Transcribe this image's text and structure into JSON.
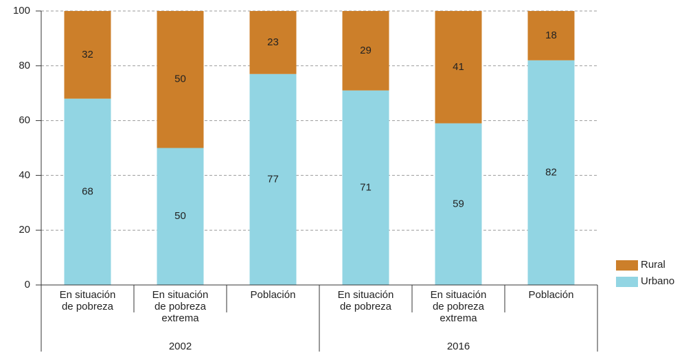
{
  "chart_data": {
    "type": "stacked_bar",
    "categories": [
      [
        "En situación",
        "de pobreza"
      ],
      [
        "En situación",
        "de pobreza",
        "extrema"
      ],
      [
        "Población"
      ],
      [
        "En situación",
        "de pobreza"
      ],
      [
        "En situación",
        "de pobreza",
        "extrema"
      ],
      [
        "Población"
      ]
    ],
    "groups": [
      {
        "label": "2002",
        "size": 3
      },
      {
        "label": "2016",
        "size": 3
      }
    ],
    "series": [
      {
        "name": "Urbano",
        "color": "#92d5e3",
        "values": [
          68,
          50,
          77,
          71,
          59,
          82
        ]
      },
      {
        "name": "Rural",
        "color": "#cc7f2a",
        "values": [
          32,
          50,
          23,
          29,
          41,
          18
        ]
      }
    ],
    "ylim": [
      0,
      100
    ],
    "yticks": [
      0,
      20,
      40,
      60,
      80,
      100
    ],
    "grid": true,
    "legend": "right"
  }
}
